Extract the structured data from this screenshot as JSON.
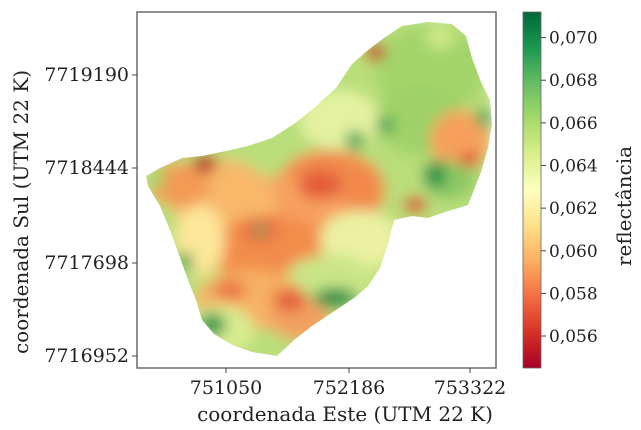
{
  "chart_data": {
    "type": "heatmap",
    "xlabel": "coordenada Este (UTM 22 K)",
    "ylabel": "coordenada Sul (UTM 22 K)",
    "x_ticks": [
      "751050",
      "752186",
      "753322"
    ],
    "y_ticks": [
      "7719190",
      "7718444",
      "7717698",
      "7716952"
    ],
    "colorbar": {
      "label": "reflectância",
      "ticks": [
        "0,070",
        "0,068",
        "0,066",
        "0,064",
        "0,062",
        "0,060",
        "0,058",
        "0,056"
      ],
      "range": [
        0.0545,
        0.0712
      ],
      "colors": [
        "#a50026",
        "#d73027",
        "#f46d43",
        "#fdae61",
        "#fee08b",
        "#ffffbf",
        "#d9ef8b",
        "#a6d96a",
        "#66bd63",
        "#1a9850",
        "#006837"
      ]
    },
    "grid": false,
    "legend": "colorbar-right"
  }
}
